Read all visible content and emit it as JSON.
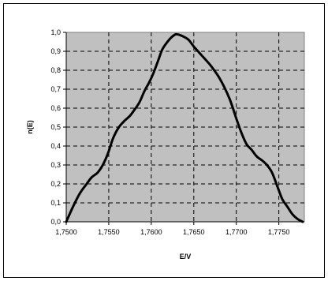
{
  "chart_data": {
    "type": "line",
    "title": "",
    "xlabel": "E/V",
    "ylabel": "n(E)",
    "xlim": [
      1.75,
      1.778
    ],
    "ylim": [
      0,
      1.0
    ],
    "grid": true,
    "x_ticks": [
      1.75,
      1.755,
      1.76,
      1.765,
      1.77,
      1.775
    ],
    "x_tick_labels": [
      "1,7500",
      "1,7550",
      "1,7600",
      "1,7650",
      "1,7700",
      "1,7750"
    ],
    "y_ticks": [
      0,
      0.1,
      0.2,
      0.3,
      0.4,
      0.5,
      0.6,
      0.7,
      0.8,
      0.9,
      1.0
    ],
    "y_tick_labels": [
      "0,0",
      "0,1",
      "0,2",
      "0,3",
      "0,4",
      "0,5",
      "0,6",
      "0,7",
      "0,8",
      "0,9",
      "1,0"
    ],
    "series": [
      {
        "x": [
          1.75,
          1.7508,
          1.7516,
          1.7524,
          1.753,
          1.7537,
          1.7543,
          1.7549,
          1.7555,
          1.7562,
          1.7569,
          1.7575,
          1.758,
          1.7586,
          1.7592,
          1.7598,
          1.7603,
          1.7608,
          1.7613,
          1.7619,
          1.7624,
          1.7629,
          1.7634,
          1.7639,
          1.7644,
          1.765,
          1.7656,
          1.7662,
          1.7668,
          1.7674,
          1.768,
          1.7686,
          1.7692,
          1.7696,
          1.77,
          1.7706,
          1.7712,
          1.7718,
          1.7724,
          1.773,
          1.7736,
          1.7742,
          1.7748,
          1.7754,
          1.776,
          1.7766,
          1.7772,
          1.7778
        ],
        "y": [
          0.0,
          0.08,
          0.15,
          0.2,
          0.235,
          0.26,
          0.3,
          0.36,
          0.44,
          0.5,
          0.535,
          0.56,
          0.59,
          0.63,
          0.69,
          0.74,
          0.79,
          0.85,
          0.91,
          0.95,
          0.975,
          0.99,
          0.985,
          0.975,
          0.96,
          0.925,
          0.895,
          0.865,
          0.835,
          0.8,
          0.76,
          0.71,
          0.65,
          0.6,
          0.545,
          0.47,
          0.41,
          0.38,
          0.345,
          0.325,
          0.3,
          0.26,
          0.19,
          0.12,
          0.08,
          0.04,
          0.015,
          0.0
        ]
      }
    ]
  }
}
